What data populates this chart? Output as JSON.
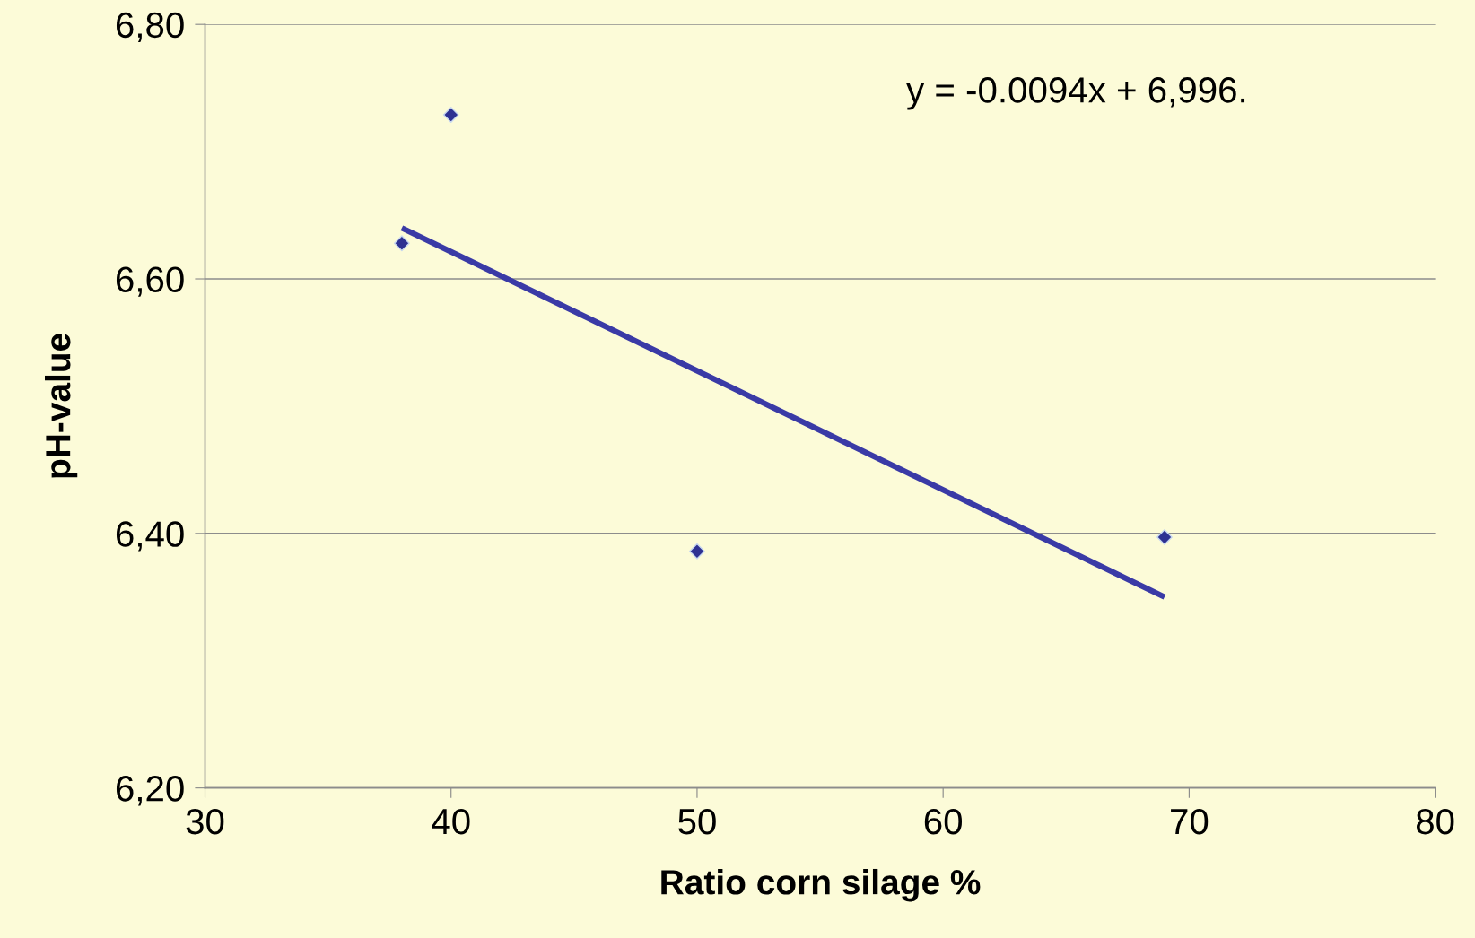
{
  "chart_data": {
    "type": "scatter",
    "xlabel": "Ratio corn silage %",
    "ylabel": "pH-value",
    "series": [
      {
        "color": "#2e3192",
        "marker": "diamond",
        "x": [
          38,
          40,
          50,
          69
        ],
        "values": [
          6.628,
          6.729,
          6.386,
          6.397
        ]
      },
      {
        "type": "line",
        "color": "#3a3aa6",
        "marker": "none",
        "line_style": "solid",
        "x": [
          38,
          69
        ],
        "values": [
          6.64,
          6.35
        ]
      }
    ],
    "xlim": [
      30,
      80
    ],
    "xticks": [
      30,
      40,
      50,
      60,
      70,
      80
    ],
    "ylim": [
      6.2,
      6.8
    ],
    "yticks": [
      {
        "value": 6.2,
        "label": "6,20"
      },
      {
        "value": 6.4,
        "label": "6,40"
      },
      {
        "value": 6.6,
        "label": "6,60"
      },
      {
        "value": 6.8,
        "label": "6,80"
      }
    ],
    "grid": "y",
    "legend": false,
    "annotations": [
      "y = -0.0094x + 6,996."
    ]
  }
}
